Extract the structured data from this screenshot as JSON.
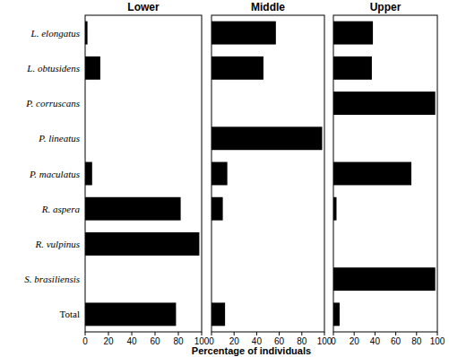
{
  "chart_data": [
    {
      "type": "bar",
      "orientation": "horizontal",
      "title": "Lower",
      "categories": [
        "L. elongatus",
        "L. obtusidens",
        "P. corruscans",
        "P. lineatus",
        "P. maculatus",
        "R. aspera",
        "R. vulpinus",
        "S. brasiliensis",
        "Total"
      ],
      "values": [
        2,
        13,
        0,
        0,
        6,
        82,
        98,
        0,
        78
      ],
      "color": "#000000",
      "xlim": [
        0,
        100
      ],
      "xticks": [
        0,
        20,
        40,
        60,
        80,
        100
      ]
    },
    {
      "type": "bar",
      "orientation": "horizontal",
      "title": "Middle",
      "x_label": "Percentage of individuals",
      "categories": [
        "L. elongatus",
        "L. obtusidens",
        "P. corruscans",
        "P. lineatus",
        "P. maculatus",
        "R. aspera",
        "R. vulpinus",
        "S. brasiliensis",
        "Total"
      ],
      "values": [
        57,
        46,
        0,
        98,
        14,
        10,
        0,
        0,
        12
      ],
      "color": "#000000",
      "xlim": [
        0,
        100
      ],
      "xticks": [
        0,
        20,
        40,
        60,
        80,
        100
      ],
      "tick_labels": "x"
    },
    {
      "type": "bar",
      "orientation": "horizontal",
      "title": "Upper",
      "categories": [
        "L. elongatus",
        "L. obtusidens",
        "P. corruscans",
        "P. lineatus",
        "P. maculatus",
        "R. aspera",
        "R. vulpinus",
        "S. brasiliensis",
        "Total"
      ],
      "values": [
        38,
        37,
        98,
        0,
        75,
        3,
        0,
        98,
        6
      ],
      "color": "#000000",
      "xlim": [
        0,
        100
      ],
      "xticks": [
        0,
        20,
        40,
        60,
        80,
        100
      ],
      "tick_labels": "x"
    }
  ]
}
